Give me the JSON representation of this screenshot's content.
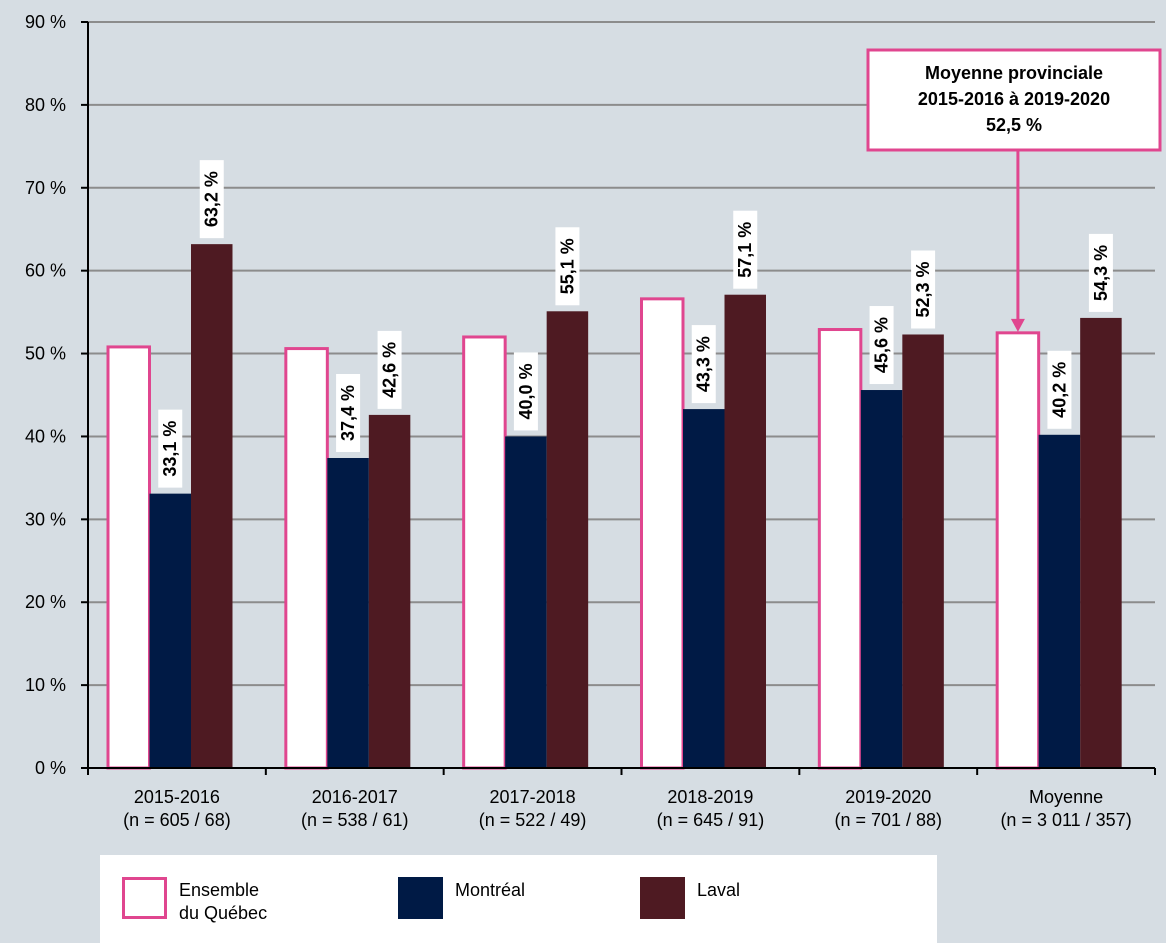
{
  "chart_data": {
    "type": "bar",
    "ylim": [
      0,
      90
    ],
    "y_ticks": [
      "0 %",
      "10 %",
      "20 %",
      "30 %",
      "40 %",
      "50 %",
      "60 %",
      "70 %",
      "80 %",
      "90 %"
    ],
    "grid": true,
    "categories": [
      [
        "2015-2016",
        "(n = 605 / 68)"
      ],
      [
        "2016-2017",
        "(n = 538 / 61)"
      ],
      [
        "2017-2018",
        "(n = 522 / 49)"
      ],
      [
        "2018-2019",
        "(n = 645 / 91)"
      ],
      [
        "2019-2020",
        "(n = 701 / 88)"
      ],
      [
        "Moyenne",
        "(n = 3 011 / 357)"
      ]
    ],
    "series": [
      {
        "name": "Ensemble du Québec",
        "legend_lines": [
          "Ensemble",
          "du Québec"
        ],
        "color": "#ffffff",
        "stroke": "#e0468f",
        "values": [
          50.8,
          50.6,
          52.0,
          56.6,
          52.9,
          52.5
        ],
        "labels": null
      },
      {
        "name": "Montréal",
        "legend_lines": [
          "Montréal"
        ],
        "color": "#001a45",
        "values": [
          33.1,
          37.4,
          40.0,
          43.3,
          45.6,
          40.2
        ],
        "labels": [
          "33,1 %",
          "37,4 %",
          "40,0 %",
          "43,3 %",
          "45,6 %",
          "40,2 %"
        ]
      },
      {
        "name": "Laval",
        "legend_lines": [
          "Laval"
        ],
        "color": "#4e1a22",
        "values": [
          63.2,
          42.6,
          55.1,
          57.1,
          52.3,
          54.3
        ],
        "labels": [
          "63,2 %",
          "42,6 %",
          "55,1 %",
          "57,1 %",
          "52,3 %",
          "54,3 %"
        ]
      }
    ],
    "annotation": {
      "lines": [
        "Moyenne provinciale",
        "2015-2016 à 2019-2020",
        "52,5 %"
      ],
      "target_category": 5,
      "target_value": 52.5,
      "border_color": "#e0468f"
    },
    "legend_placement": "bottom"
  }
}
